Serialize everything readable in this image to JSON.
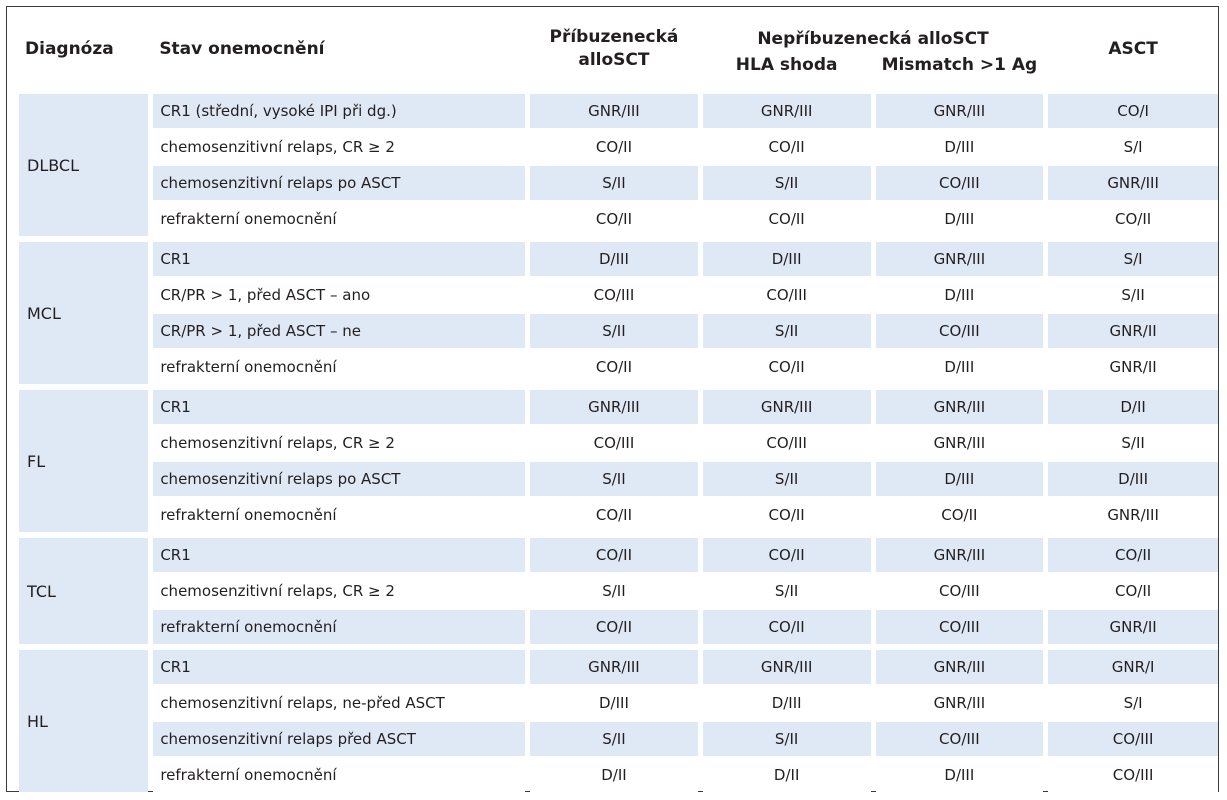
{
  "headers": {
    "diagnoza": "Diagnóza",
    "stav": "Stav onemocnění",
    "pribuzenecka": "Příbuzenecká alloSCT",
    "nepribuzenecka": "Nepříbuzenecká alloSCT",
    "hla_shoda": "HLA shoda",
    "mismatch": "Mismatch >1 Ag",
    "asct": "ASCT"
  },
  "colors": {
    "stripe": "#dfe8f5",
    "text": "#231f20"
  },
  "groups": [
    {
      "diagnosis": "DLBCL",
      "rows": [
        [
          "CR1 (střední, vysoké IPI při dg.)",
          "GNR/III",
          "GNR/III",
          "GNR/III",
          "CO/I"
        ],
        [
          "chemosenzitivní relaps, CR ≥ 2",
          "CO/II",
          "CO/II",
          "D/III",
          "S/I"
        ],
        [
          "chemosenzitivní relaps po ASCT",
          "S/II",
          "S/II",
          "CO/III",
          "GNR/III"
        ],
        [
          "refrakterní onemocnění",
          "CO/II",
          "CO/II",
          "D/III",
          "CO/II"
        ]
      ]
    },
    {
      "diagnosis": "MCL",
      "rows": [
        [
          "CR1",
          "D/III",
          "D/III",
          "GNR/III",
          "S/I"
        ],
        [
          "CR/PR > 1, před ASCT – ano",
          "CO/III",
          "CO/III",
          "D/III",
          "S/II"
        ],
        [
          "CR/PR > 1, před ASCT – ne",
          "S/II",
          "S/II",
          "CO/III",
          "GNR/II"
        ],
        [
          "refrakterní onemocnění",
          "CO/II",
          "CO/II",
          "D/III",
          "GNR/II"
        ]
      ]
    },
    {
      "diagnosis": "FL",
      "rows": [
        [
          "CR1",
          "GNR/III",
          "GNR/III",
          "GNR/III",
          "D/II"
        ],
        [
          "chemosenzitivní relaps, CR ≥ 2",
          "CO/III",
          "CO/III",
          "GNR/III",
          "S/II"
        ],
        [
          "chemosenzitivní relaps po ASCT",
          "S/II",
          "S/II",
          "D/III",
          "D/III"
        ],
        [
          "refrakterní onemocnění",
          "CO/II",
          "CO/II",
          "CO/II",
          "GNR/III"
        ]
      ]
    },
    {
      "diagnosis": "TCL",
      "rows": [
        [
          "CR1",
          "CO/II",
          "CO/II",
          "GNR/III",
          "CO/II"
        ],
        [
          "chemosenzitivní relaps, CR ≥ 2",
          "S/II",
          "S/II",
          "CO/III",
          "CO/II"
        ],
        [
          "refrakterní onemocnění",
          "CO/II",
          "CO/II",
          "CO/III",
          "GNR/II"
        ]
      ]
    },
    {
      "diagnosis": "HL",
      "rows": [
        [
          "CR1",
          "GNR/III",
          "GNR/III",
          "GNR/III",
          "GNR/I"
        ],
        [
          "chemosenzitivní relaps, ne-před ASCT",
          "D/III",
          "D/III",
          "GNR/III",
          "S/I"
        ],
        [
          "chemosenzitivní relaps před ASCT",
          "S/II",
          "S/II",
          "CO/III",
          "CO/III"
        ],
        [
          "refrakterní onemocnění",
          "D/II",
          "D/II",
          "D/III",
          "CO/III"
        ]
      ]
    }
  ]
}
